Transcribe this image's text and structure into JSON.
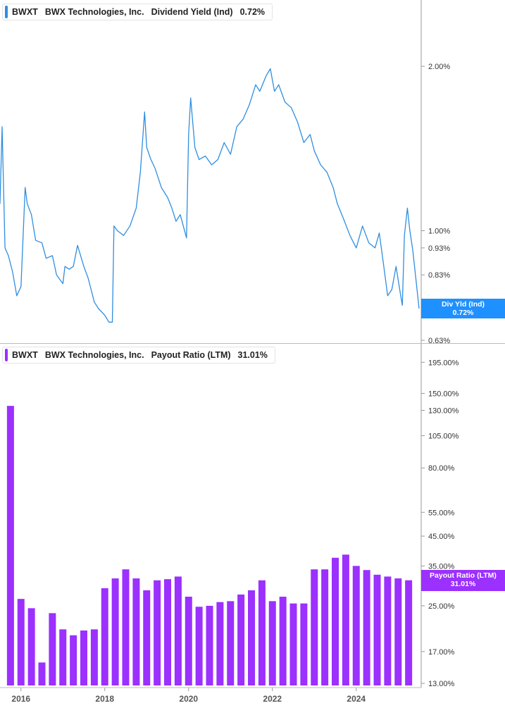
{
  "chart_data": [
    {
      "type": "line",
      "ticker": "BWXT",
      "company": "BWX Technologies, Inc.",
      "metric": "Dividend Yield (Ind)",
      "current_value": "0.72%",
      "tag_label": "Div Yld (Ind)",
      "tag_value": "0.72%",
      "color": "#2f8ee0",
      "y_scale": "log",
      "ylim": [
        0.63,
        2.2
      ],
      "y_ticks": [
        "2.00%",
        "1.00%",
        "0.93%",
        "0.83%",
        "0.72%",
        "0.63%"
      ],
      "y_tick_values": [
        2.0,
        1.0,
        0.93,
        0.83,
        0.72,
        0.63
      ],
      "x_ticks": [
        "2016",
        "2018",
        "2020",
        "2022",
        "2024"
      ],
      "x_tick_values": [
        2016,
        2018,
        2020,
        2022,
        2024
      ],
      "xlim": [
        2015.5,
        2025.55
      ],
      "grid": false,
      "legend": "top-left",
      "x": [
        2015.5,
        2015.55,
        2015.62,
        2015.7,
        2015.8,
        2015.9,
        2016.0,
        2016.1,
        2016.15,
        2016.25,
        2016.35,
        2016.5,
        2016.6,
        2016.75,
        2016.85,
        2017.0,
        2017.05,
        2017.15,
        2017.25,
        2017.35,
        2017.5,
        2017.6,
        2017.75,
        2017.85,
        2018.0,
        2018.1,
        2018.18,
        2018.22,
        2018.3,
        2018.45,
        2018.6,
        2018.75,
        2018.85,
        2018.95,
        2019.0,
        2019.1,
        2019.2,
        2019.35,
        2019.5,
        2019.6,
        2019.7,
        2019.8,
        2019.95,
        2020.0,
        2020.05,
        2020.15,
        2020.25,
        2020.4,
        2020.55,
        2020.7,
        2020.85,
        2021.0,
        2021.15,
        2021.3,
        2021.45,
        2021.6,
        2021.7,
        2021.85,
        2021.95,
        2022.05,
        2022.15,
        2022.3,
        2022.45,
        2022.6,
        2022.75,
        2022.9,
        2023.0,
        2023.15,
        2023.3,
        2023.45,
        2023.55,
        2023.7,
        2023.85,
        2024.0,
        2024.15,
        2024.3,
        2024.45,
        2024.55,
        2024.65,
        2024.75,
        2024.85,
        2024.95,
        2025.05,
        2025.1,
        2025.15,
        2025.22,
        2025.28,
        2025.35,
        2025.42,
        2025.5
      ],
      "values": [
        1.12,
        1.55,
        0.93,
        0.9,
        0.84,
        0.76,
        0.79,
        1.2,
        1.12,
        1.07,
        0.96,
        0.95,
        0.89,
        0.9,
        0.83,
        0.8,
        0.86,
        0.85,
        0.86,
        0.94,
        0.86,
        0.82,
        0.74,
        0.72,
        0.7,
        0.68,
        0.68,
        1.02,
        1.0,
        0.98,
        1.02,
        1.1,
        1.28,
        1.65,
        1.42,
        1.35,
        1.3,
        1.2,
        1.15,
        1.1,
        1.04,
        1.07,
        0.97,
        1.5,
        1.75,
        1.42,
        1.35,
        1.37,
        1.32,
        1.35,
        1.45,
        1.38,
        1.55,
        1.6,
        1.7,
        1.85,
        1.8,
        1.92,
        1.98,
        1.8,
        1.85,
        1.72,
        1.68,
        1.58,
        1.45,
        1.5,
        1.4,
        1.32,
        1.28,
        1.2,
        1.12,
        1.05,
        0.98,
        0.93,
        1.02,
        0.95,
        0.93,
        0.99,
        0.87,
        0.76,
        0.78,
        0.86,
        0.77,
        0.73,
        0.98,
        1.1,
        1.0,
        0.92,
        0.82,
        0.72
      ]
    },
    {
      "type": "bar",
      "ticker": "BWXT",
      "company": "BWX Technologies, Inc.",
      "metric": "Payout Ratio (LTM)",
      "current_value": "31.01%",
      "tag_label": "Payout Ratio (LTM)",
      "tag_value": "31.01%",
      "color": "#9b30ff",
      "y_scale": "log",
      "ylim": [
        13,
        200
      ],
      "y_ticks": [
        "195.00%",
        "150.00%",
        "130.00%",
        "105.00%",
        "80.00%",
        "55.00%",
        "45.00%",
        "35.00%",
        "31.01%",
        "25.00%",
        "17.00%",
        "13.00%"
      ],
      "y_tick_values": [
        195,
        150,
        130,
        105,
        80,
        55,
        45,
        35,
        31.01,
        25,
        17,
        13
      ],
      "x_ticks": [
        "2016",
        "2018",
        "2020",
        "2022",
        "2024"
      ],
      "x_tick_values": [
        2016,
        2018,
        2020,
        2022,
        2024
      ],
      "xlim": [
        2015.5,
        2025.55
      ],
      "grid": false,
      "legend": "top-left",
      "x": [
        2015.75,
        2016.0,
        2016.25,
        2016.5,
        2016.75,
        2017.0,
        2017.25,
        2017.5,
        2017.75,
        2018.0,
        2018.25,
        2018.5,
        2018.75,
        2019.0,
        2019.25,
        2019.5,
        2019.75,
        2020.0,
        2020.25,
        2020.5,
        2020.75,
        2021.0,
        2021.25,
        2021.5,
        2021.75,
        2022.0,
        2022.25,
        2022.5,
        2022.75,
        2023.0,
        2023.25,
        2023.5,
        2023.75,
        2024.0,
        2024.25,
        2024.5,
        2024.75,
        2025.0,
        2025.25
      ],
      "values": [
        135,
        26.5,
        24.5,
        15.5,
        23.5,
        20.5,
        19.5,
        20.3,
        20.5,
        29,
        31.5,
        34,
        31.5,
        28.5,
        31,
        31.3,
        32,
        27,
        24.8,
        25,
        25.8,
        26,
        27.5,
        28.5,
        31,
        26,
        27,
        25.5,
        25.5,
        34,
        34,
        37.5,
        38.5,
        35,
        33.8,
        32.5,
        32,
        31.5,
        31.01
      ]
    }
  ]
}
